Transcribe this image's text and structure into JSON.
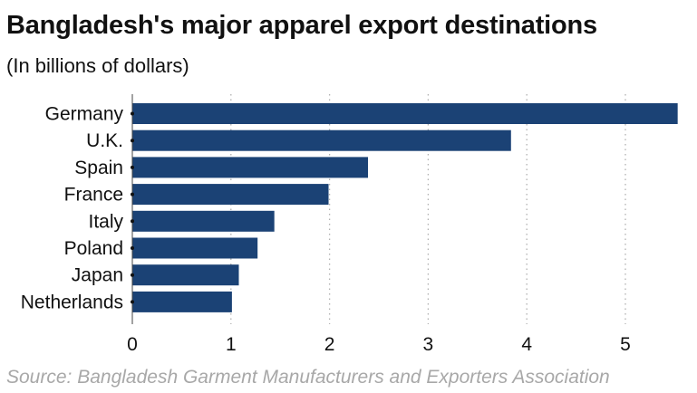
{
  "chart_data": {
    "type": "bar",
    "orientation": "horizontal",
    "title": "Bangladesh's major apparel export destinations",
    "subtitle": "(In billions of dollars)",
    "source": "Source: Bangladesh Garment Manufacturers and Exporters Association",
    "categories": [
      "Germany",
      "U.K.",
      "Spain",
      "France",
      "Italy",
      "Poland",
      "Japan",
      "Netherlands"
    ],
    "values": [
      5.53,
      3.84,
      2.39,
      1.99,
      1.44,
      1.27,
      1.08,
      1.01
    ],
    "xlim": [
      0,
      5.55
    ],
    "xticks": [
      "0",
      "1",
      "2",
      "3",
      "4",
      "5"
    ],
    "grid": "vertical dotted",
    "bar_color": "#1b4275"
  }
}
